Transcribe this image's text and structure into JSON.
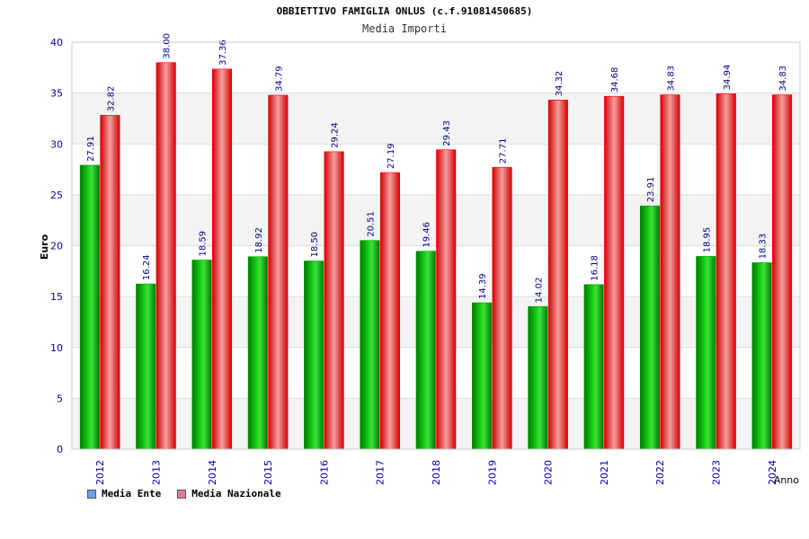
{
  "chart_data": {
    "type": "bar",
    "title": "OBBIETTIVO FAMIGLIA ONLUS (c.f.91081450685)",
    "subtitle": "Media Importi",
    "xlabel": "Anno",
    "ylabel": "Euro",
    "ylim": [
      0,
      40
    ],
    "yticks": [
      0,
      5,
      10,
      15,
      20,
      25,
      30,
      35,
      40
    ],
    "grid": true,
    "legend_position": "bottom-left",
    "categories": [
      "2012",
      "2013",
      "2014",
      "2015",
      "2016",
      "2017",
      "2018",
      "2019",
      "2020",
      "2021",
      "2022",
      "2023",
      "2024"
    ],
    "series": [
      {
        "name": "Media Ente",
        "color": "#00a000",
        "legend_color": "#6aa0e8",
        "values": [
          27.91,
          16.24,
          18.59,
          18.92,
          18.5,
          20.51,
          19.46,
          14.39,
          14.02,
          16.18,
          23.91,
          18.95,
          18.33
        ],
        "labels": [
          "27.91",
          "16.24",
          "18.59",
          "18.92",
          "18.50",
          "20.51",
          "19.46",
          "14.39",
          "14.02",
          "16.18",
          "23.91",
          "18.95",
          "18.33"
        ]
      },
      {
        "name": "Media Nazionale",
        "color": "#e00000",
        "legend_color": "#e07aa8",
        "values": [
          32.82,
          38.0,
          37.36,
          34.79,
          29.24,
          27.19,
          29.43,
          27.71,
          34.32,
          34.68,
          34.83,
          34.94,
          34.83
        ],
        "labels": [
          "32.82",
          "38.00",
          "37.36",
          "34.79",
          "29.24",
          "27.19",
          "29.43",
          "27.71",
          "34.32",
          "34.68",
          "34.83",
          "34.94",
          "34.83"
        ]
      }
    ]
  }
}
